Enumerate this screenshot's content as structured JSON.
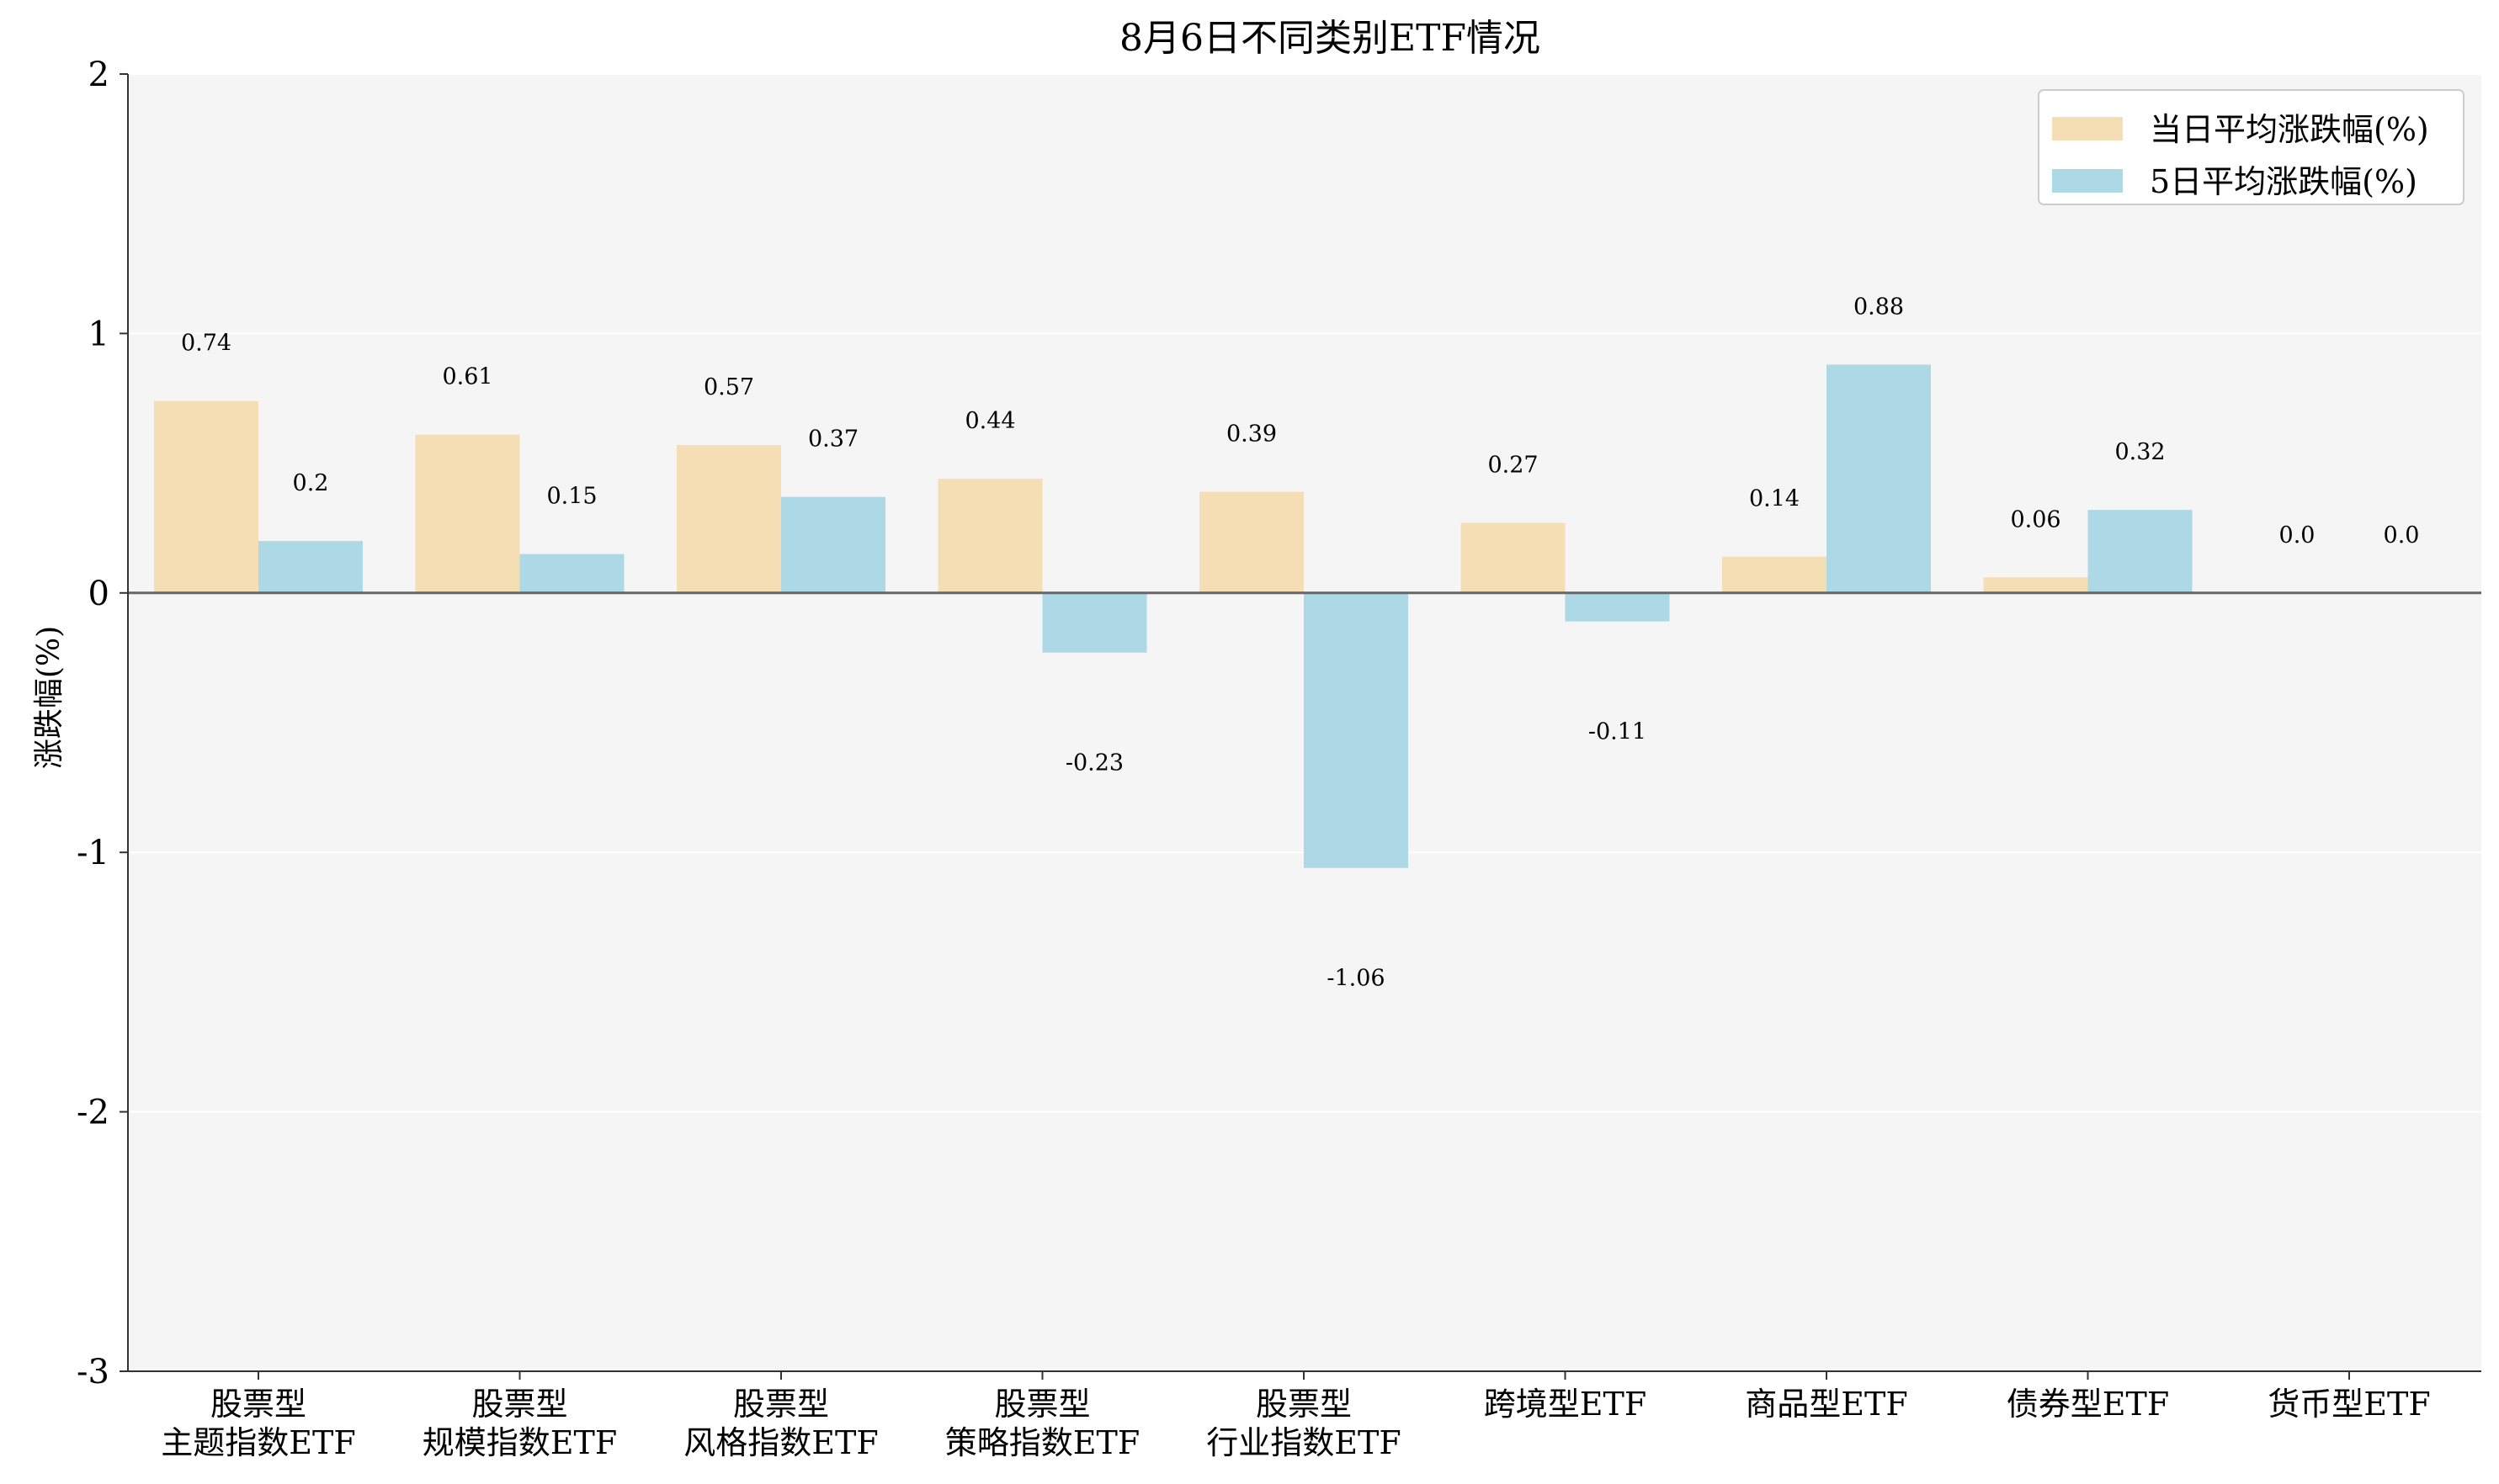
{
  "chart_data": {
    "type": "bar",
    "title": "8月6日不同类别ETF情况",
    "xlabel": "",
    "ylabel": "涨跌幅(%)",
    "ylim": [
      -3,
      2
    ],
    "yticks": [
      "2",
      "1",
      "0",
      "-1",
      "-2",
      "-3"
    ],
    "grid": true,
    "legend_position": "top-right",
    "categories": [
      "股票型\n主题指数ETF",
      "股票型\n规模指数ETF",
      "股票型\n风格指数ETF",
      "股票型\n策略指数ETF",
      "股票型\n行业指数ETF",
      "跨境型ETF",
      "商品型ETF",
      "债券型ETF",
      "货币型ETF"
    ],
    "series": [
      {
        "name": "当日平均涨跌幅(%)",
        "color": "#f5deb3",
        "values": [
          0.74,
          0.61,
          0.57,
          0.44,
          0.39,
          0.27,
          0.14,
          0.06,
          0.0
        ],
        "labels": [
          "0.74",
          "0.61",
          "0.57",
          "0.44",
          "0.39",
          "0.27",
          "0.14",
          "0.06",
          "0.0"
        ]
      },
      {
        "name": "5日平均涨跌幅(%)",
        "color": "#add8e6",
        "values": [
          0.2,
          0.15,
          0.37,
          -0.23,
          -1.06,
          -0.11,
          0.88,
          0.32,
          0.0
        ],
        "labels": [
          "0.2",
          "0.15",
          "0.37",
          "-0.23",
          "-1.06",
          "-0.11",
          "0.88",
          "0.32",
          "0.0"
        ]
      }
    ]
  }
}
